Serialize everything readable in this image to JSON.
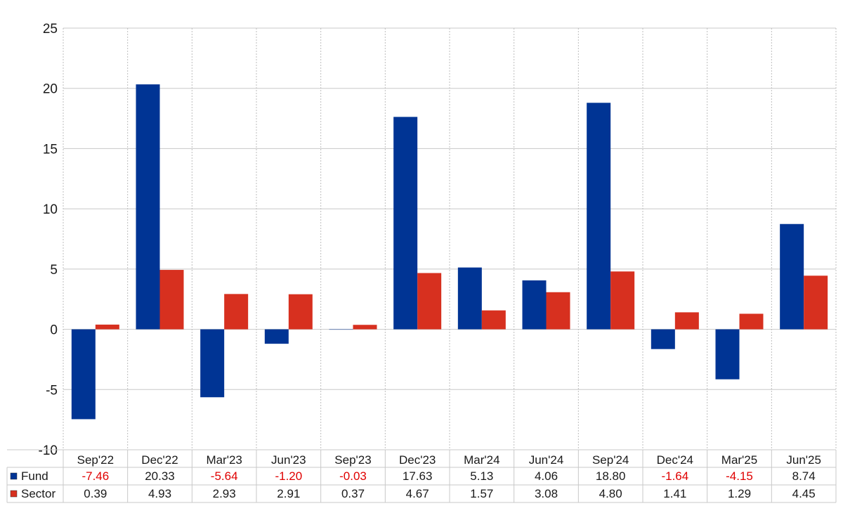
{
  "chart_data": {
    "type": "bar",
    "title": "",
    "xlabel": "",
    "ylabel": "",
    "ylim": [
      -10,
      25
    ],
    "yticks": [
      -10,
      -5,
      0,
      5,
      10,
      15,
      20,
      25
    ],
    "grid": true,
    "categories": [
      "Sep'22",
      "Dec'22",
      "Mar'23",
      "Jun'23",
      "Sep'23",
      "Dec'23",
      "Mar'24",
      "Jun'24",
      "Sep'24",
      "Dec'24",
      "Mar'25",
      "Jun'25"
    ],
    "series": [
      {
        "name": "Fund",
        "color": "#003494",
        "values": [
          -7.46,
          20.33,
          -5.64,
          -1.2,
          -0.03,
          17.63,
          5.13,
          4.06,
          18.8,
          -1.64,
          -4.15,
          8.74
        ],
        "labels": [
          "-7.46",
          "20.33",
          "-5.64",
          "-1.20",
          "-0.03",
          "17.63",
          "5.13",
          "4.06",
          "18.80",
          "-1.64",
          "-4.15",
          "8.74"
        ]
      },
      {
        "name": "Sector",
        "color": "#d7301f",
        "values": [
          0.39,
          4.93,
          2.93,
          2.91,
          0.37,
          4.67,
          1.57,
          3.08,
          4.8,
          1.41,
          1.29,
          4.45
        ],
        "labels": [
          "0.39",
          "4.93",
          "2.93",
          "2.91",
          "0.37",
          "4.67",
          "1.57",
          "3.08",
          "4.80",
          "1.41",
          "1.29",
          "4.45"
        ]
      }
    ],
    "table": {
      "negative_color": "#e00000",
      "positive_color": "#1a1a1a"
    }
  }
}
